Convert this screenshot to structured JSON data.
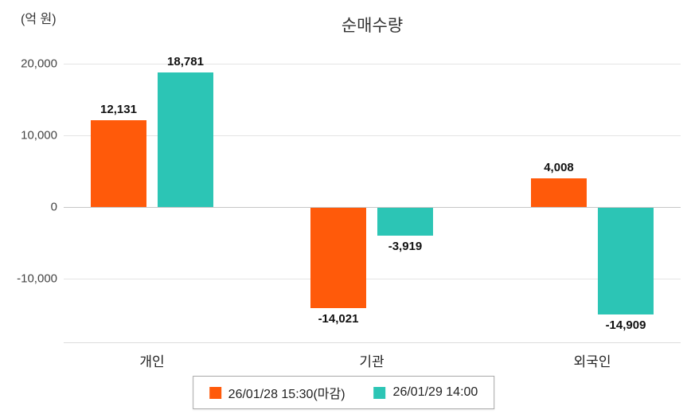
{
  "header": {
    "title": "순매수량",
    "unit_label": "(억 원)"
  },
  "chart_data": {
    "type": "bar",
    "title": "순매수량",
    "ylabel": "(억 원)",
    "categories": [
      "개인",
      "기관",
      "외국인"
    ],
    "series": [
      {
        "name": "26/01/28 15:30(마감)",
        "color": "#ff5a0a",
        "values": [
          12131,
          -14021,
          4008
        ]
      },
      {
        "name": "26/01/29 14:00",
        "color": "#2cc5b5",
        "values": [
          18781,
          -3919,
          -14909
        ]
      }
    ],
    "yticks": [
      20000,
      10000,
      0,
      -10000
    ],
    "ylim": [
      -19000,
      23000
    ],
    "grid": true,
    "legend_position": "bottom"
  }
}
